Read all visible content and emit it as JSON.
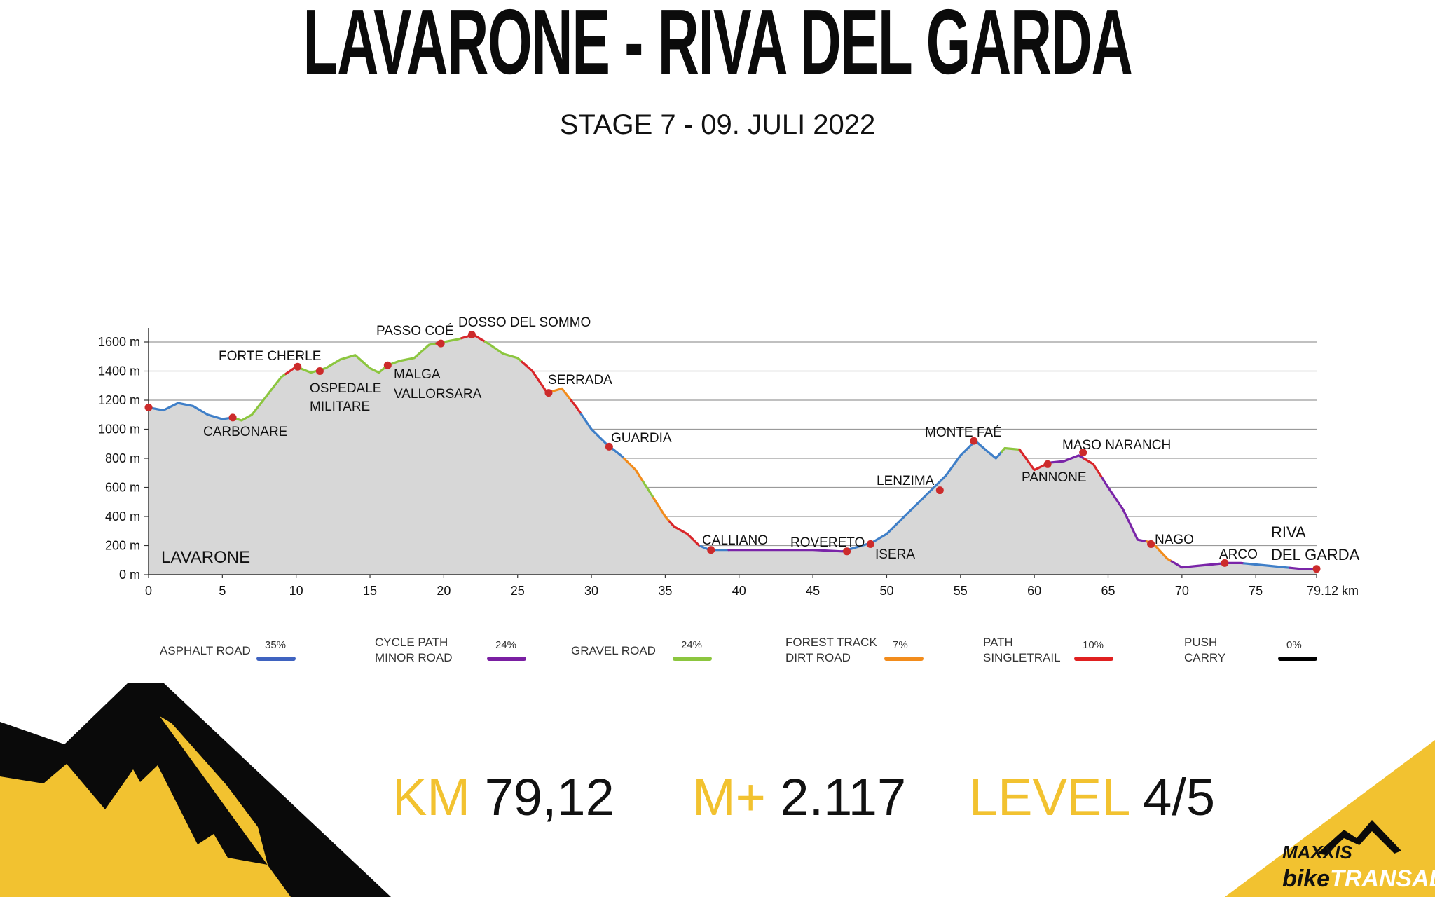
{
  "header": {
    "title": "LAVARONE - RIVA DEL GARDA",
    "subtitle": "STAGE 7 - 09. JULI 2022"
  },
  "chart_data": {
    "type": "area",
    "title": "",
    "xlabel": "",
    "ylabel": "",
    "xlim": [
      0,
      79.12
    ],
    "ylim": [
      0,
      1600
    ],
    "x_ticks": [
      "0",
      "5",
      "10",
      "15",
      "20",
      "25",
      "30",
      "35",
      "40",
      "45",
      "50",
      "55",
      "60",
      "65",
      "70",
      "75",
      "79.12 km"
    ],
    "y_ticks": [
      "0 m",
      "200 m",
      "400 m",
      "600 m",
      "800 m",
      "1000 m",
      "1200 m",
      "1400 m",
      "1600 m"
    ],
    "grid": true,
    "series": [
      {
        "points": [
          [
            0,
            1150
          ],
          [
            1,
            1130
          ],
          [
            2,
            1180
          ],
          [
            3,
            1160
          ],
          [
            4,
            1100
          ],
          [
            5,
            1070
          ],
          [
            5.7,
            1080
          ],
          [
            6.3,
            1060
          ],
          [
            7,
            1100
          ],
          [
            8,
            1230
          ],
          [
            9,
            1360
          ],
          [
            10,
            1430
          ],
          [
            11,
            1390
          ],
          [
            12,
            1420
          ],
          [
            13,
            1480
          ],
          [
            14,
            1510
          ],
          [
            15,
            1420
          ],
          [
            15.6,
            1390
          ],
          [
            16.2,
            1440
          ],
          [
            17,
            1470
          ],
          [
            18,
            1490
          ],
          [
            19,
            1580
          ],
          [
            20,
            1600
          ],
          [
            21,
            1620
          ],
          [
            22,
            1650
          ],
          [
            23,
            1590
          ],
          [
            24,
            1520
          ],
          [
            25,
            1490
          ],
          [
            26,
            1400
          ],
          [
            27,
            1250
          ],
          [
            28,
            1280
          ],
          [
            29,
            1150
          ],
          [
            30,
            1000
          ],
          [
            31,
            900
          ],
          [
            32,
            820
          ],
          [
            33,
            720
          ],
          [
            34,
            560
          ],
          [
            35,
            400
          ],
          [
            35.6,
            330
          ],
          [
            36.5,
            280
          ],
          [
            37.3,
            200
          ],
          [
            38,
            170
          ],
          [
            40,
            170
          ],
          [
            43,
            170
          ],
          [
            45,
            170
          ],
          [
            47,
            160
          ],
          [
            49,
            220
          ],
          [
            50,
            280
          ],
          [
            51,
            380
          ],
          [
            52,
            480
          ],
          [
            53,
            580
          ],
          [
            54,
            680
          ],
          [
            55,
            820
          ],
          [
            56,
            920
          ],
          [
            56.8,
            850
          ],
          [
            57.4,
            800
          ],
          [
            58,
            870
          ],
          [
            59,
            860
          ],
          [
            60,
            720
          ],
          [
            61,
            770
          ],
          [
            62,
            780
          ],
          [
            63,
            820
          ],
          [
            64,
            760
          ],
          [
            65,
            600
          ],
          [
            66,
            450
          ],
          [
            67,
            240
          ],
          [
            68,
            220
          ],
          [
            69,
            110
          ],
          [
            70,
            50
          ],
          [
            71,
            60
          ],
          [
            72,
            70
          ],
          [
            73,
            80
          ],
          [
            74,
            80
          ],
          [
            75,
            70
          ],
          [
            76,
            60
          ],
          [
            77,
            50
          ],
          [
            78,
            40
          ],
          [
            79.12,
            40
          ]
        ]
      }
    ],
    "surface_segments": [
      {
        "from": 0,
        "to": 5.7,
        "surface": "asphalt"
      },
      {
        "from": 5.7,
        "to": 9.3,
        "surface": "gravel"
      },
      {
        "from": 9.3,
        "to": 10.3,
        "surface": "singletrail"
      },
      {
        "from": 10.3,
        "to": 19.5,
        "surface": "gravel"
      },
      {
        "from": 19.5,
        "to": 20.1,
        "surface": "singletrail"
      },
      {
        "from": 20.1,
        "to": 21.2,
        "surface": "gravel"
      },
      {
        "from": 21.2,
        "to": 22.8,
        "surface": "singletrail"
      },
      {
        "from": 22.8,
        "to": 25.3,
        "surface": "gravel"
      },
      {
        "from": 25.3,
        "to": 27.4,
        "surface": "singletrail"
      },
      {
        "from": 27.4,
        "to": 28.6,
        "surface": "forest"
      },
      {
        "from": 28.6,
        "to": 29.3,
        "surface": "singletrail"
      },
      {
        "from": 29.3,
        "to": 32.2,
        "surface": "asphalt"
      },
      {
        "from": 32.2,
        "to": 33.5,
        "surface": "forest"
      },
      {
        "from": 33.5,
        "to": 34.2,
        "surface": "gravel"
      },
      {
        "from": 34.2,
        "to": 35.3,
        "surface": "forest"
      },
      {
        "from": 35.3,
        "to": 37.4,
        "surface": "singletrail"
      },
      {
        "from": 37.4,
        "to": 39.3,
        "surface": "asphalt"
      },
      {
        "from": 39.3,
        "to": 47.5,
        "surface": "cyclepath"
      },
      {
        "from": 47.5,
        "to": 55.9,
        "surface": "asphalt"
      },
      {
        "from": 55.9,
        "to": 57.8,
        "surface": "asphalt"
      },
      {
        "from": 57.8,
        "to": 59.0,
        "surface": "gravel"
      },
      {
        "from": 59.0,
        "to": 60.8,
        "surface": "singletrail"
      },
      {
        "from": 60.8,
        "to": 63.4,
        "surface": "cyclepath"
      },
      {
        "from": 63.4,
        "to": 64.6,
        "surface": "singletrail"
      },
      {
        "from": 64.6,
        "to": 67.6,
        "surface": "cyclepath"
      },
      {
        "from": 67.6,
        "to": 69.3,
        "surface": "forest"
      },
      {
        "from": 69.3,
        "to": 74.2,
        "surface": "cyclepath"
      },
      {
        "from": 74.2,
        "to": 77.3,
        "surface": "asphalt"
      },
      {
        "from": 77.3,
        "to": 79.12,
        "surface": "cyclepath"
      }
    ],
    "waypoints": [
      {
        "label": "LAVARONE",
        "km": 0,
        "elev": 1150
      },
      {
        "label": "CARBONARE",
        "km": 5.7,
        "elev": 1080
      },
      {
        "label": "FORTE CHERLE",
        "km": 10.1,
        "elev": 1430
      },
      {
        "label": "OSPEDALE MILITARE",
        "km": 11.6,
        "elev": 1400
      },
      {
        "label": "MALGA VALLORSARA",
        "km": 16.2,
        "elev": 1440
      },
      {
        "label": "PASSO COÉ",
        "km": 19.8,
        "elev": 1590
      },
      {
        "label": "DOSSO DEL SOMMO",
        "km": 21.9,
        "elev": 1650
      },
      {
        "label": "SERRADA",
        "km": 27.1,
        "elev": 1250
      },
      {
        "label": "GUARDIA",
        "km": 31.2,
        "elev": 880
      },
      {
        "label": "CALLIANO",
        "km": 38.1,
        "elev": 170
      },
      {
        "label": "ROVERETO",
        "km": 47.3,
        "elev": 160
      },
      {
        "label": "ISERA",
        "km": 48.9,
        "elev": 210
      },
      {
        "label": "LENZIMA",
        "km": 53.6,
        "elev": 580
      },
      {
        "label": "MONTE FAÉ",
        "km": 55.9,
        "elev": 920
      },
      {
        "label": "PANNONE",
        "km": 60.9,
        "elev": 760
      },
      {
        "label": "MASO NARANCH",
        "km": 63.3,
        "elev": 840
      },
      {
        "label": "NAGO",
        "km": 67.9,
        "elev": 210
      },
      {
        "label": "ARCO",
        "km": 72.9,
        "elev": 80
      },
      {
        "label": "RIVA DEL GARDA",
        "km": 79.12,
        "elev": 40
      }
    ],
    "labels": {
      "lavarone": "LAVARONE",
      "carbonare": "CARBONARE",
      "forte_cherle": "FORTE CHERLE",
      "ospedale_1": "OSPEDALE",
      "ospedale_2": "MILITARE",
      "malga_1": "MALGA",
      "malga_2": "VALLORSARA",
      "passo_coe": "PASSO COÉ",
      "dosso": "DOSSO DEL SOMMO",
      "serrada": "SERRADA",
      "guardia": "GUARDIA",
      "calliano": "CALLIANO",
      "rovereto": "ROVERETO",
      "isera": "ISERA",
      "lenzima": "LENZIMA",
      "monte_fae": "MONTE FAÉ",
      "pannone": "PANNONE",
      "maso": "MASO NARANCH",
      "nago": "NAGO",
      "arco": "ARCO",
      "riva_1": "RIVA",
      "riva_2": "DEL GARDA"
    },
    "colors": {
      "asphalt": "#3f7fc8",
      "cyclepath": "#7a25a8",
      "gravel": "#8cc63f",
      "forest": "#f28c1c",
      "singletrail": "#d9262a",
      "push": "#000000",
      "fill": "#d7d7d7",
      "marker": "#cc2b2b"
    }
  },
  "legend": [
    {
      "line1": "ASPHALT ROAD",
      "line2": "",
      "pct": "35%",
      "color": "#3f63c0"
    },
    {
      "line1": "CYCLE PATH",
      "line2": "MINOR ROAD",
      "pct": "24%",
      "color": "#7a1fa2"
    },
    {
      "line1": "GRAVEL ROAD",
      "line2": "",
      "pct": "24%",
      "color": "#8cc63f"
    },
    {
      "line1": "FOREST TRACK",
      "line2": "DIRT ROAD",
      "pct": "7%",
      "color": "#f28c1c"
    },
    {
      "line1": "PATH",
      "line2": "SINGLETRAIL",
      "pct": "10%",
      "color": "#e02020"
    },
    {
      "line1": "PUSH",
      "line2": "CARRY",
      "pct": "0%",
      "color": "#000000"
    }
  ],
  "stats": {
    "km_label": "KM",
    "km_value": "79,12",
    "elev_label": "M+",
    "elev_value": "2.117",
    "level_label": "LEVEL",
    "level_value": "4/5"
  },
  "brand": {
    "line1": "MAXXIS",
    "line2a": "bike",
    "line2b": "TRANSALP",
    "colors": {
      "yellow": "#f2c230",
      "black": "#0a0a0a"
    }
  }
}
